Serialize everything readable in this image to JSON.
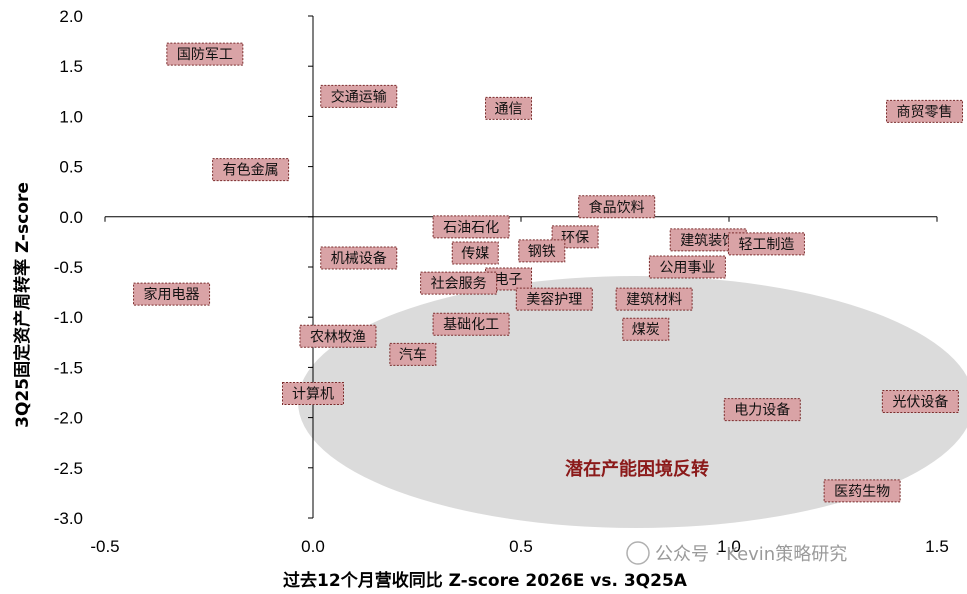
{
  "chart_data": {
    "type": "scatter",
    "xlabel": "过去12个月营收同比 Z-score 2026E vs. 3Q25A",
    "ylabel": "3Q25固定资产周转率 Z-score",
    "xlim": [
      -0.5,
      1.5
    ],
    "ylim": [
      -3.0,
      2.0
    ],
    "x_ticks": [
      "-0.5",
      "0.0",
      "0.5",
      "1.0",
      "1.5"
    ],
    "y_ticks": [
      "2.0",
      "1.5",
      "1.0",
      "0.5",
      "0.0",
      "-0.5",
      "-1.0",
      "-1.5",
      "-2.0",
      "-2.5",
      "-3.0"
    ],
    "grid": false,
    "points": [
      {
        "name": "国防军工",
        "x": -0.26,
        "y": 1.62
      },
      {
        "name": "交通运输",
        "x": 0.11,
        "y": 1.2
      },
      {
        "name": "通信",
        "x": 0.47,
        "y": 1.08
      },
      {
        "name": "商贸零售",
        "x": 1.47,
        "y": 1.05
      },
      {
        "name": "有色金属",
        "x": -0.15,
        "y": 0.47
      },
      {
        "name": "食品饮料",
        "x": 0.73,
        "y": 0.1
      },
      {
        "name": "石油石化",
        "x": 0.38,
        "y": -0.1
      },
      {
        "name": "环保",
        "x": 0.63,
        "y": -0.2
      },
      {
        "name": "建筑装饰",
        "x": 0.95,
        "y": -0.23
      },
      {
        "name": "轻工制造",
        "x": 1.09,
        "y": -0.27
      },
      {
        "name": "传媒",
        "x": 0.39,
        "y": -0.36
      },
      {
        "name": "钢铁",
        "x": 0.55,
        "y": -0.34
      },
      {
        "name": "机械设备",
        "x": 0.11,
        "y": -0.41
      },
      {
        "name": "公用事业",
        "x": 0.9,
        "y": -0.5
      },
      {
        "name": "电子",
        "x": 0.47,
        "y": -0.62
      },
      {
        "name": "社会服务",
        "x": 0.35,
        "y": -0.66
      },
      {
        "name": "家用电器",
        "x": -0.34,
        "y": -0.77
      },
      {
        "name": "美容护理",
        "x": 0.58,
        "y": -0.82
      },
      {
        "name": "建筑材料",
        "x": 0.82,
        "y": -0.82
      },
      {
        "name": "基础化工",
        "x": 0.38,
        "y": -1.07
      },
      {
        "name": "煤炭",
        "x": 0.8,
        "y": -1.12
      },
      {
        "name": "农林牧渔",
        "x": 0.06,
        "y": -1.19
      },
      {
        "name": "汽车",
        "x": 0.24,
        "y": -1.37
      },
      {
        "name": "计算机",
        "x": 0.0,
        "y": -1.76
      },
      {
        "name": "光伏设备",
        "x": 1.46,
        "y": -1.84
      },
      {
        "name": "电力设备",
        "x": 1.08,
        "y": -1.92
      },
      {
        "name": "医药生物",
        "x": 1.32,
        "y": -2.73
      }
    ],
    "annotation": "潜在产能困境反转",
    "colors": {
      "label_fill": "#d9a3a6",
      "label_border": "#7a2c2c",
      "highlight_ellipse": "#d9d9d9",
      "annotation_text": "#8b1a1a",
      "axis": "#000000"
    }
  },
  "watermark": "公众号 · Kevin策略研究"
}
